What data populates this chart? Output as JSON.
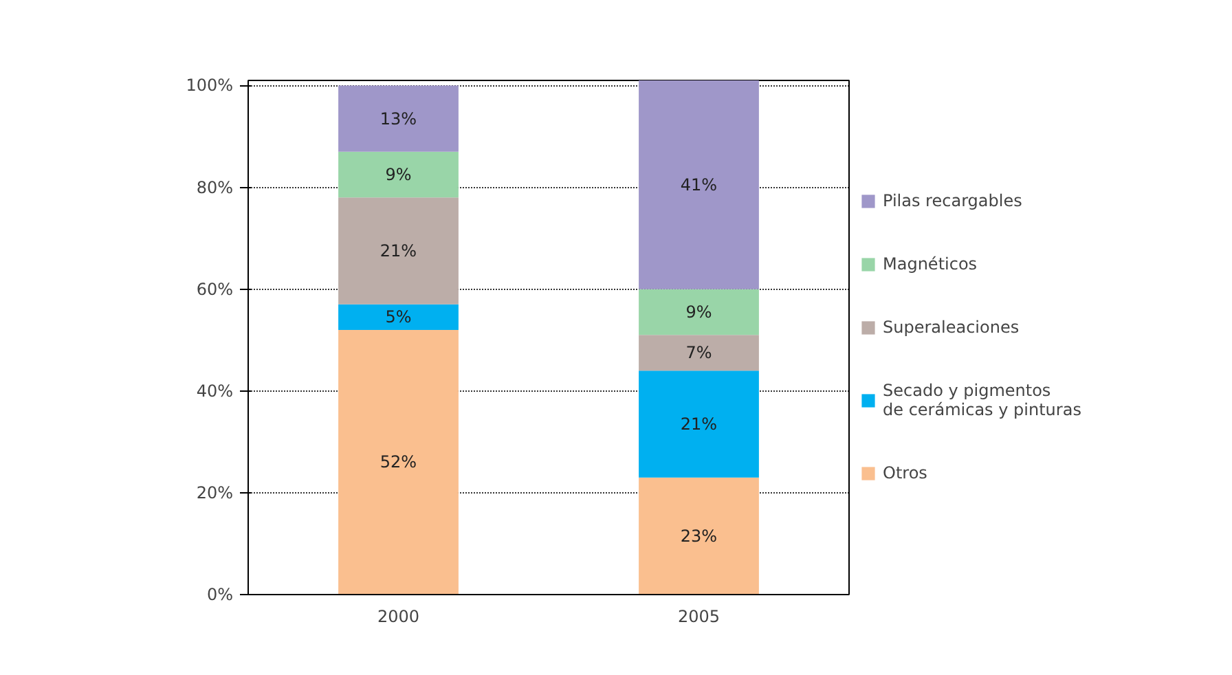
{
  "chart_data": {
    "type": "bar",
    "stacked": true,
    "categories": [
      "2000",
      "2005"
    ],
    "ylim": [
      0,
      101
    ],
    "yticks": [
      {
        "value": 0,
        "label": "0%"
      },
      {
        "value": 20,
        "label": "20%"
      },
      {
        "value": 40,
        "label": "40%"
      },
      {
        "value": 60,
        "label": "60%"
      },
      {
        "value": 80,
        "label": "80%"
      },
      {
        "value": 100,
        "label": "100%"
      }
    ],
    "grid": "y",
    "legend": "right",
    "series": [
      {
        "name": "Otros",
        "color": "#fabf8f",
        "values": [
          52,
          23
        ],
        "value_labels": [
          "52%",
          "23%"
        ]
      },
      {
        "name": "Secado y pigmentos\nde cerámicas y pinturas",
        "color": "#00b0f0",
        "values": [
          5,
          21
        ],
        "value_labels": [
          "5%",
          "21%"
        ]
      },
      {
        "name": "Superaleaciones",
        "color": "#bcada8",
        "values": [
          21,
          7
        ],
        "value_labels": [
          "21%",
          "7%"
        ]
      },
      {
        "name": "Magnéticos",
        "color": "#99d5a8",
        "values": [
          9,
          9
        ],
        "value_labels": [
          "9%",
          "9%"
        ]
      },
      {
        "name": "Pilas recargables",
        "color": "#9f97c9",
        "values": [
          13,
          41
        ],
        "value_labels": [
          "13%",
          "41%"
        ]
      }
    ]
  }
}
